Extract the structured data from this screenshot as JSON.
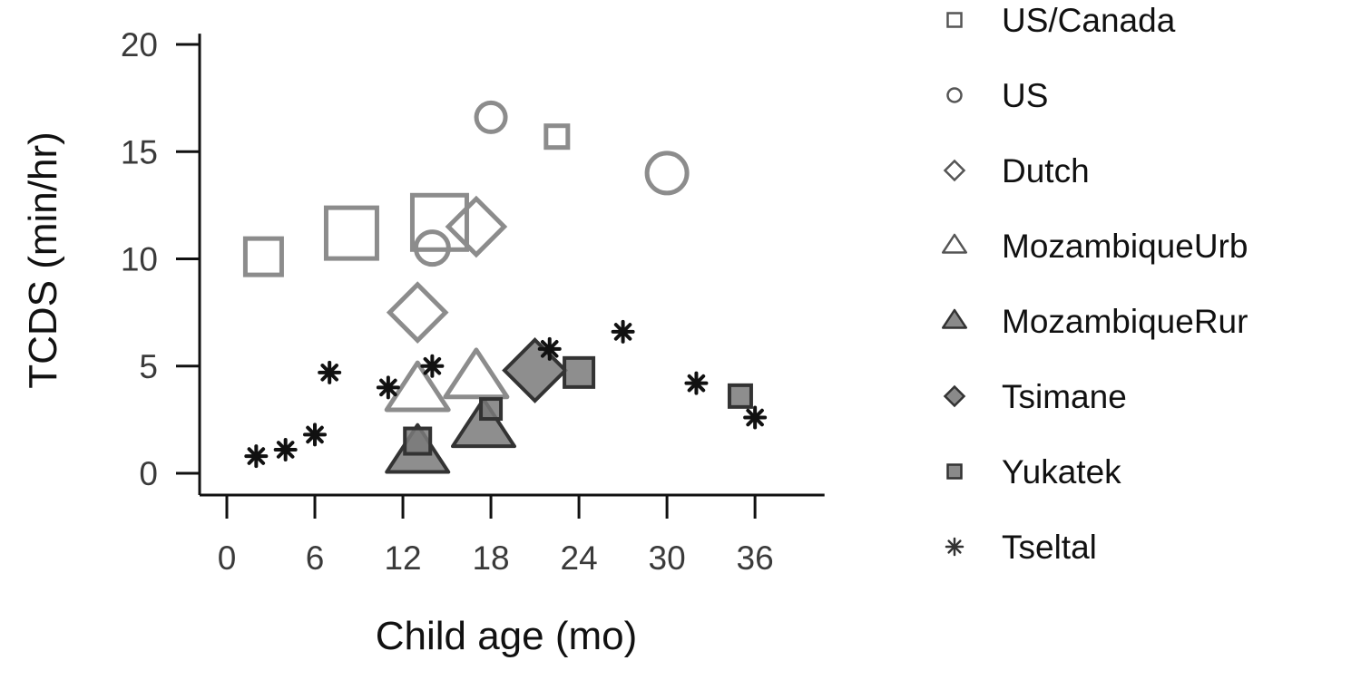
{
  "chart_data": {
    "type": "scatter",
    "title": "",
    "xlabel": "Child age (mo)",
    "ylabel": "TCDS (min/hr)",
    "xlim": [
      -1.5,
      39.5
    ],
    "ylim": [
      -1,
      20.5
    ],
    "x_ticks": [
      0,
      6,
      12,
      18,
      24,
      30,
      36
    ],
    "y_ticks": [
      0,
      5,
      10,
      15,
      20
    ],
    "grid": false,
    "legend_position": "right",
    "series": [
      {
        "name": "US/Canada",
        "marker": "square",
        "style": "open",
        "points": [
          {
            "x": 2.5,
            "y": 10.1,
            "size": 1.0
          },
          {
            "x": 8.5,
            "y": 11.2,
            "size": 1.4
          },
          {
            "x": 14.5,
            "y": 11.7,
            "size": 1.5
          },
          {
            "x": 22.5,
            "y": 15.7,
            "size": 0.6
          }
        ]
      },
      {
        "name": "US",
        "marker": "circle",
        "style": "open",
        "points": [
          {
            "x": 18,
            "y": 16.6,
            "size": 0.8
          },
          {
            "x": 14,
            "y": 10.5,
            "size": 0.9
          },
          {
            "x": 30,
            "y": 14.0,
            "size": 1.1
          }
        ]
      },
      {
        "name": "Dutch",
        "marker": "diamond",
        "style": "open",
        "points": [
          {
            "x": 13,
            "y": 7.5,
            "size": 1.1
          },
          {
            "x": 17,
            "y": 11.5,
            "size": 1.1
          }
        ]
      },
      {
        "name": "MozambiqueUrb",
        "marker": "triangle",
        "style": "open",
        "points": [
          {
            "x": 13,
            "y": 3.8,
            "size": 1.0
          },
          {
            "x": 17,
            "y": 4.4,
            "size": 1.0
          }
        ]
      },
      {
        "name": "MozambiqueRur",
        "marker": "triangle",
        "style": "filled",
        "points": [
          {
            "x": 13,
            "y": 0.9,
            "size": 1.0
          },
          {
            "x": 17.5,
            "y": 2.1,
            "size": 1.0
          }
        ]
      },
      {
        "name": "Tsimane",
        "marker": "diamond",
        "style": "filled",
        "points": [
          {
            "x": 21,
            "y": 4.8,
            "size": 1.2
          }
        ]
      },
      {
        "name": "Yukatek",
        "marker": "square",
        "style": "filled",
        "points": [
          {
            "x": 13,
            "y": 1.5,
            "size": 0.7
          },
          {
            "x": 18,
            "y": 3.0,
            "size": 0.55
          },
          {
            "x": 24,
            "y": 4.7,
            "size": 0.8
          },
          {
            "x": 35,
            "y": 3.6,
            "size": 0.6
          }
        ]
      },
      {
        "name": "Tseltal",
        "marker": "asterisk",
        "style": "filled",
        "points": [
          {
            "x": 2,
            "y": 0.8
          },
          {
            "x": 4,
            "y": 1.1
          },
          {
            "x": 6,
            "y": 1.8
          },
          {
            "x": 7,
            "y": 4.7
          },
          {
            "x": 11,
            "y": 4.0
          },
          {
            "x": 14,
            "y": 5.0
          },
          {
            "x": 22,
            "y": 5.8
          },
          {
            "x": 27,
            "y": 6.6
          },
          {
            "x": 32,
            "y": 4.2
          },
          {
            "x": 36,
            "y": 2.6
          }
        ]
      }
    ],
    "colors": {
      "open_stroke": "#8c8c8c",
      "filled_fill": "#7a7a7a",
      "filled_stroke": "#333333",
      "asterisk": "#111111",
      "axis": "#111111",
      "legend_stroke": "#555555",
      "legend_fill": "#8a8a8a"
    }
  }
}
